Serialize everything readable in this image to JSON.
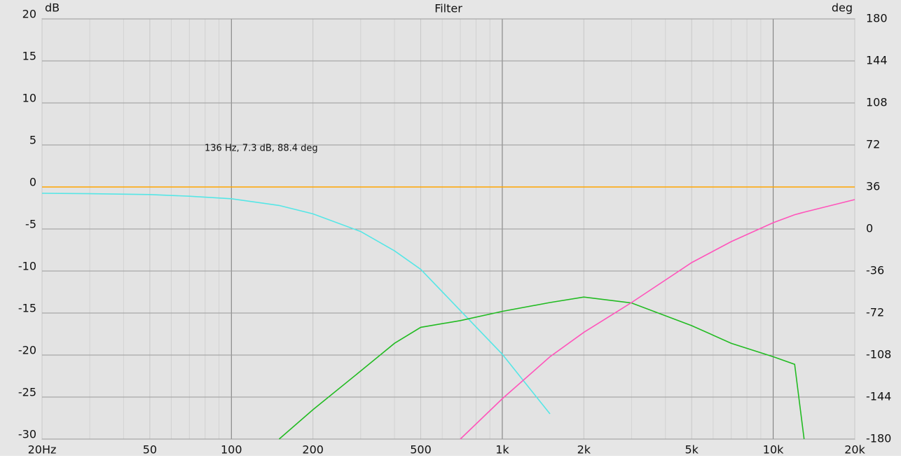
{
  "chart_data": {
    "type": "line",
    "title": "Filter",
    "ylabel": "dB",
    "y2label": "deg",
    "annotation": "136 Hz, 7.3 dB, 88.4 deg",
    "x": [
      20,
      30,
      50,
      70,
      100,
      150,
      200,
      300,
      400,
      500,
      700,
      1000,
      1500,
      2000,
      3000,
      5000,
      7000,
      10000,
      12000,
      13000,
      15000,
      20000
    ],
    "series": [
      {
        "color": "#ffa500",
        "values": [
          0,
          0,
          0,
          0,
          0,
          0,
          0,
          0,
          0,
          0,
          0,
          0,
          0,
          0,
          0,
          0,
          0,
          0,
          0,
          0,
          0,
          0
        ]
      },
      {
        "color": "#55e6e6",
        "values": [
          -0.75,
          -0.8,
          -0.9,
          -1.1,
          -1.4,
          -2.2,
          -3.2,
          -5.3,
          -7.6,
          -9.8,
          -14.7,
          -19.9,
          -27,
          null,
          null,
          null,
          null,
          null,
          null,
          null,
          null,
          null
        ]
      },
      {
        "color": "#22bb22",
        "values": [
          null,
          null,
          null,
          null,
          null,
          -30,
          -26.5,
          -21.9,
          -18.6,
          -16.7,
          -15.9,
          -14.8,
          -13.75,
          -13.1,
          -13.8,
          -16.5,
          -18.6,
          -20.2,
          -21.1,
          -30,
          null,
          null
        ]
      },
      {
        "color": "#ff55bb",
        "values": [
          null,
          null,
          null,
          null,
          null,
          null,
          null,
          null,
          null,
          null,
          -30,
          -25.2,
          -20.2,
          -17.3,
          -13.75,
          -9,
          -6.5,
          -4.25,
          -3.3,
          -3,
          -2.5,
          -1.5
        ]
      }
    ],
    "xscale": "log",
    "xlim": [
      20,
      20000
    ],
    "xticks": [
      {
        "value": 20,
        "label": "20Hz"
      },
      50,
      100,
      200,
      500,
      {
        "value": 1000,
        "label": "1k"
      },
      {
        "value": 2000,
        "label": "2k"
      },
      {
        "value": 5000,
        "label": "5k"
      },
      {
        "value": 10000,
        "label": "10k"
      },
      {
        "value": 20000,
        "label": "20k"
      }
    ],
    "xminorticks": [
      30,
      40,
      60,
      70,
      80,
      90,
      300,
      400,
      600,
      700,
      800,
      900,
      3000,
      4000,
      6000,
      7000,
      8000,
      9000
    ],
    "ylim": [
      -30,
      20
    ],
    "yticks": [
      20,
      15,
      10,
      5,
      0,
      -5,
      -10,
      -15,
      -20,
      -25,
      -30
    ],
    "y2lim": [
      -180,
      180
    ],
    "y2ticks": [
      180,
      144,
      108,
      72,
      36,
      0,
      -36,
      -72,
      -108,
      -144,
      -180
    ],
    "grid": true
  }
}
